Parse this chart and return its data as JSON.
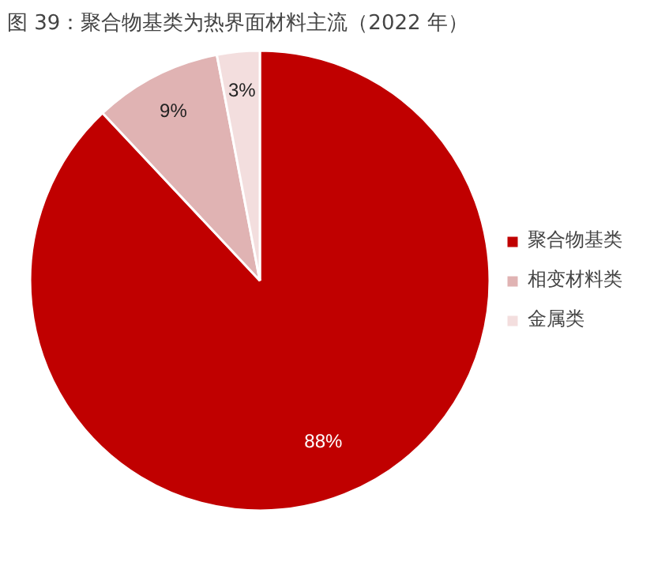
{
  "chart_data": {
    "type": "pie",
    "title": "图 39：聚合物基类为热界面材料主流（2022 年）",
    "categories": [
      "聚合物基类",
      "相变材料类",
      "金属类"
    ],
    "values": [
      88,
      9,
      3
    ],
    "colors": [
      "#c00000",
      "#e0b3b3",
      "#f3dede"
    ],
    "value_labels": [
      "88%",
      "9%",
      "3%"
    ],
    "legend": "right"
  }
}
